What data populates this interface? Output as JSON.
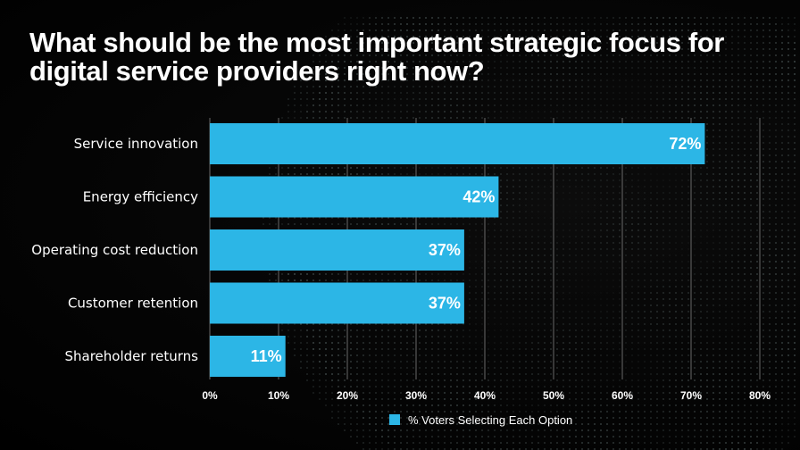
{
  "title": "What should be the most important strategic focus for digital service providers right now?",
  "colors": {
    "bar": "#2cb6e6",
    "background": "#000000",
    "gridline": "#8a8a8a",
    "text": "#ffffff"
  },
  "legend": {
    "label": "% Voters Selecting Each Option",
    "placement": "bottom-center"
  },
  "chart_data": {
    "type": "bar",
    "orientation": "horizontal",
    "categories": [
      "Service innovation",
      "Energy efficiency",
      "Operating cost reduction",
      "Customer retention",
      "Shareholder returns"
    ],
    "series": [
      {
        "name": "% Voters Selecting Each Option",
        "values": [
          72,
          42,
          37,
          37,
          11
        ]
      }
    ],
    "data_labels": [
      "72%",
      "42%",
      "37%",
      "37%",
      "11%"
    ],
    "xlim": [
      0,
      80
    ],
    "x_ticks": [
      0,
      10,
      20,
      30,
      40,
      50,
      60,
      70,
      80
    ],
    "x_tick_labels": [
      "0%",
      "10%",
      "20%",
      "30%",
      "40%",
      "50%",
      "60%",
      "70%",
      "80%"
    ],
    "grid": true
  }
}
